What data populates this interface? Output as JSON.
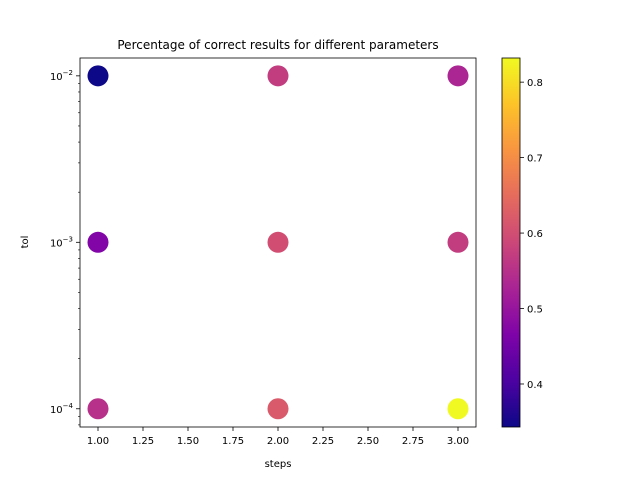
{
  "chart_data": {
    "type": "scatter",
    "title": "Percentage of correct results for different parameters",
    "xlabel": "steps",
    "ylabel": "tol",
    "xlim": [
      0.9,
      3.1
    ],
    "ylim": [
      7.77e-05,
      0.0128
    ],
    "yscale": "log",
    "x_ticks": [
      1.0,
      1.25,
      1.5,
      1.75,
      2.0,
      2.25,
      2.5,
      2.75,
      3.0
    ],
    "x_tick_labels": [
      "1.00",
      "1.25",
      "1.50",
      "1.75",
      "2.00",
      "2.25",
      "2.50",
      "2.75",
      "3.00"
    ],
    "y_ticks": [
      0.0001,
      0.001,
      0.01
    ],
    "y_tick_labels": [
      {
        "base": "10",
        "exp": "−4"
      },
      {
        "base": "10",
        "exp": "−3"
      },
      {
        "base": "10",
        "exp": "−2"
      }
    ],
    "colormap": "plasma",
    "colorbar": {
      "range": [
        0.343,
        0.832
      ],
      "ticks": [
        0.4,
        0.5,
        0.6,
        0.7,
        0.8
      ],
      "tick_labels": [
        "0.4",
        "0.5",
        "0.6",
        "0.7",
        "0.8"
      ]
    },
    "points": [
      {
        "x": 1,
        "y": 0.01,
        "value": 0.343
      },
      {
        "x": 2,
        "y": 0.01,
        "value": 0.57
      },
      {
        "x": 3,
        "y": 0.01,
        "value": 0.53
      },
      {
        "x": 1,
        "y": 0.001,
        "value": 0.47
      },
      {
        "x": 2,
        "y": 0.001,
        "value": 0.6
      },
      {
        "x": 3,
        "y": 0.001,
        "value": 0.57
      },
      {
        "x": 1,
        "y": 0.0001,
        "value": 0.55
      },
      {
        "x": 2,
        "y": 0.0001,
        "value": 0.62
      },
      {
        "x": 3,
        "y": 0.0001,
        "value": 0.832
      }
    ],
    "grid": false,
    "legend": "none"
  }
}
